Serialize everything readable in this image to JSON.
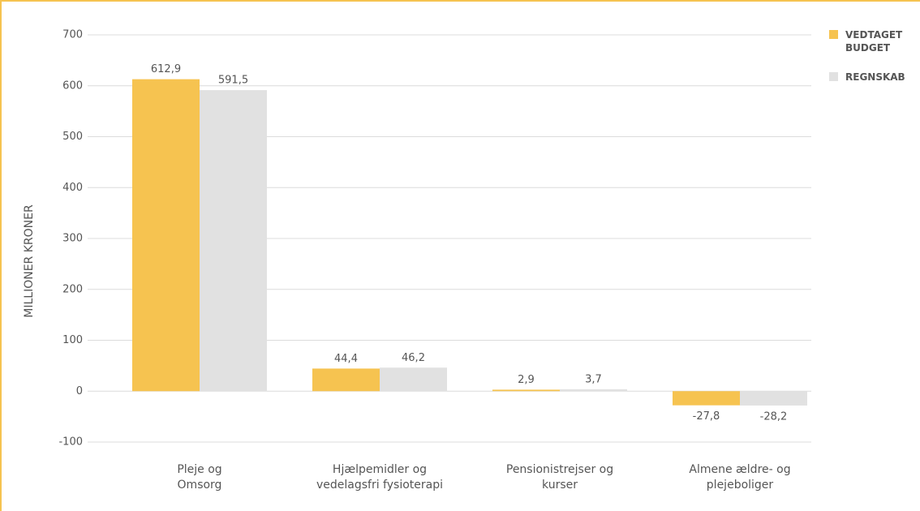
{
  "chart_data": {
    "type": "bar",
    "y_label": "MILLIONER KRONER",
    "categories": [
      "Pleje og\nOmsorg",
      "Hjælpemidler og\nvedelagsfri fysioterapi",
      "Pensionistrejser og\nkurser",
      "Almene ældre- og\nplejeboliger"
    ],
    "series": [
      {
        "name": "VEDTAGET BUDGET",
        "color": "#f6c350",
        "values": [
          612.9,
          44.4,
          2.9,
          -27.8
        ],
        "value_labels": [
          "612,9",
          "44,4",
          "2,9",
          "-27,8"
        ]
      },
      {
        "name": "REGNSKAB",
        "color": "#e1e1e1",
        "values": [
          591.5,
          46.2,
          3.7,
          -28.2
        ],
        "value_labels": [
          "591,5",
          "46,2",
          "3,7",
          "-28,2"
        ]
      }
    ],
    "ylim": [
      -100,
      700
    ],
    "yticks": [
      -100,
      0,
      100,
      200,
      300,
      400,
      500,
      600,
      700
    ],
    "grid": true,
    "legend": "top-right"
  }
}
